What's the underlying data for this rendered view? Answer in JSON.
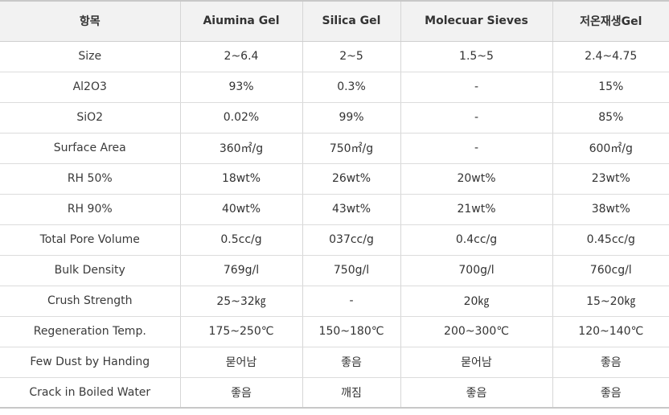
{
  "table": {
    "headers": [
      "항목",
      "Aiumina Gel",
      "Silica Gel",
      "Molecuar Sieves",
      "저온재생Gel"
    ],
    "rows": [
      [
        "Size",
        "2~6.4",
        "2~5",
        "1.5~5",
        "2.4~4.75"
      ],
      [
        "Al2O3",
        "93%",
        "0.3%",
        "-",
        "15%"
      ],
      [
        "SiO2",
        "0.02%",
        "99%",
        "-",
        "85%"
      ],
      [
        "Surface Area",
        "360㎡/g",
        "750㎡/g",
        "-",
        "600㎡/g"
      ],
      [
        "RH 50%",
        "18wt%",
        "26wt%",
        "20wt%",
        "23wt%"
      ],
      [
        "RH 90%",
        "40wt%",
        "43wt%",
        "21wt%",
        "38wt%"
      ],
      [
        "Total Pore Volume",
        "0.5cc/g",
        "037cc/g",
        "0.4cc/g",
        "0.45cc/g"
      ],
      [
        "Bulk Density",
        "769g/l",
        "750g/l",
        "700g/l",
        "760cg/l"
      ],
      [
        "Crush Strength",
        "25~32㎏",
        "-",
        "20㎏",
        "15~20㎏"
      ],
      [
        "Regeneration Temp.",
        "175~250℃",
        "150~180℃",
        "200~300℃",
        "120~140℃"
      ],
      [
        "Few Dust by Handing",
        "묻어남",
        "좋음",
        "묻어남",
        "좋음"
      ],
      [
        "Crack in Boiled Water",
        "좋음",
        "깨짐",
        "좋음",
        "좋음"
      ]
    ]
  }
}
